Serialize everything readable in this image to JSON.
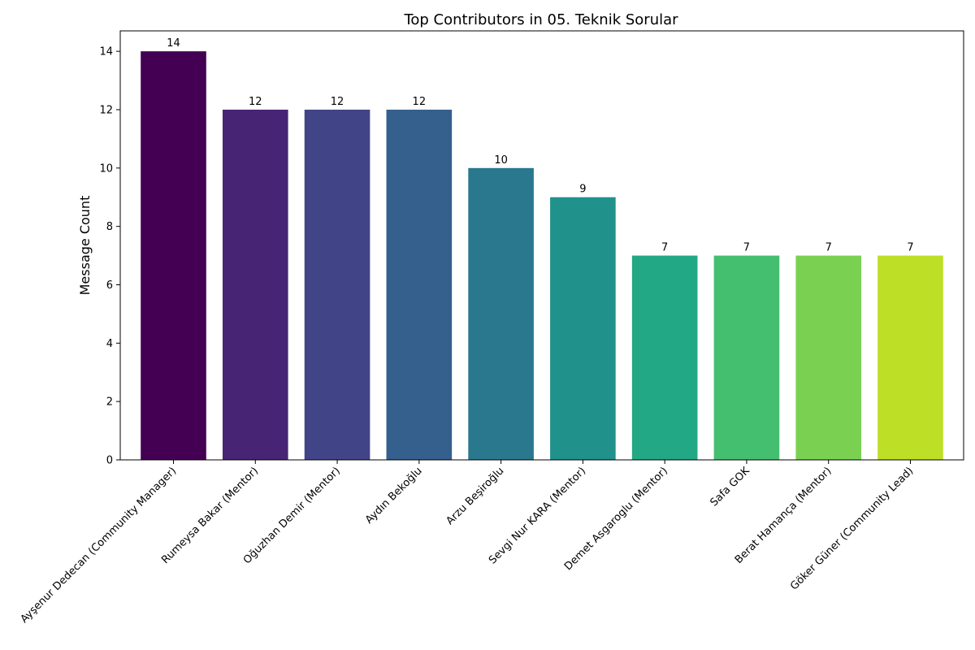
{
  "chart_data": {
    "type": "bar",
    "title": "Top Contributors in 05. Teknik Sorular",
    "xlabel": "",
    "ylabel": "Message Count",
    "categories": [
      "Ayşenur Dedecan (Community Manager)",
      "Rumeysa Bakar (Mentor)",
      "Oğuzhan Demir (Mentor)",
      "Aydın Bekoğlu",
      "Arzu Beşiroğlu",
      "Sevgi Nur KARA (Mentor)",
      "Demet Asgaroglu (Mentor)",
      "Safa GOK",
      "Berat Hamança (Mentor)",
      "Göker Güner (Community Lead)"
    ],
    "values": [
      14,
      12,
      12,
      12,
      10,
      9,
      7,
      7,
      7,
      7
    ],
    "colors": [
      "#440154",
      "#482475",
      "#414487",
      "#355f8d",
      "#2a788e",
      "#21918c",
      "#22a884",
      "#44bf70",
      "#7ad151",
      "#bddf26"
    ],
    "ylim": [
      0,
      14.7
    ],
    "yticks": [
      0,
      2,
      4,
      6,
      8,
      10,
      12,
      14
    ],
    "grid": false,
    "legend": "none"
  }
}
